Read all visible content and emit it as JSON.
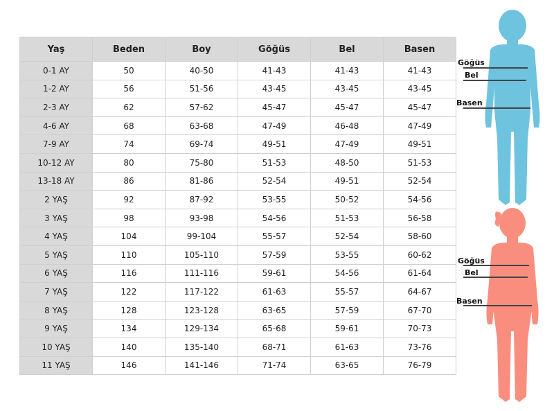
{
  "table": {
    "headers": [
      "Yaş",
      "Beden",
      "Boy",
      "Göğüs",
      "Bel",
      "Basen"
    ],
    "rows": [
      [
        "0-1 AY",
        "50",
        "40-50",
        "41-43",
        "41-43",
        "41-43"
      ],
      [
        "1-2 AY",
        "56",
        "51-56",
        "43-45",
        "43-45",
        "43-45"
      ],
      [
        "2-3 AY",
        "62",
        "57-62",
        "45-47",
        "45-47",
        "45-47"
      ],
      [
        "4-6 AY",
        "68",
        "63-68",
        "47-49",
        "46-48",
        "47-49"
      ],
      [
        "7-9 AY",
        "74",
        "69-74",
        "49-51",
        "47-49",
        "49-51"
      ],
      [
        "10-12 AY",
        "80",
        "75-80",
        "51-53",
        "48-50",
        "51-53"
      ],
      [
        "13-18 AY",
        "86",
        "81-86",
        "52-54",
        "49-51",
        "52-54"
      ],
      [
        "2 YAŞ",
        "92",
        "87-92",
        "53-55",
        "50-52",
        "54-56"
      ],
      [
        "3 YAŞ",
        "98",
        "93-98",
        "54-56",
        "51-53",
        "56-58"
      ],
      [
        "4 YAŞ",
        "104",
        "99-104",
        "55-57",
        "52-54",
        "58-60"
      ],
      [
        "5 YAŞ",
        "110",
        "105-110",
        "57-59",
        "53-55",
        "60-62"
      ],
      [
        "6 YAŞ",
        "116",
        "111-116",
        "59-61",
        "54-56",
        "61-64"
      ],
      [
        "7 YAŞ",
        "122",
        "117-122",
        "61-63",
        "55-57",
        "64-67"
      ],
      [
        "8 YAŞ",
        "128",
        "123-128",
        "63-65",
        "57-59",
        "67-70"
      ],
      [
        "9 YAŞ",
        "134",
        "129-134",
        "65-68",
        "59-61",
        "70-73"
      ],
      [
        "10 YAŞ",
        "140",
        "135-140",
        "68-71",
        "61-63",
        "73-76"
      ],
      [
        "11 YAŞ",
        "146",
        "141-146",
        "71-74",
        "63-65",
        "76-79"
      ]
    ]
  },
  "figures": {
    "boy": {
      "color": "#6EC3DE",
      "labels": {
        "chest": "Göğüs",
        "waist": "Bel",
        "hip": "Basen"
      }
    },
    "girl": {
      "color": "#F98E7E",
      "labels": {
        "chest": "Göğüs",
        "waist": "Bel",
        "hip": "Basen"
      }
    }
  }
}
